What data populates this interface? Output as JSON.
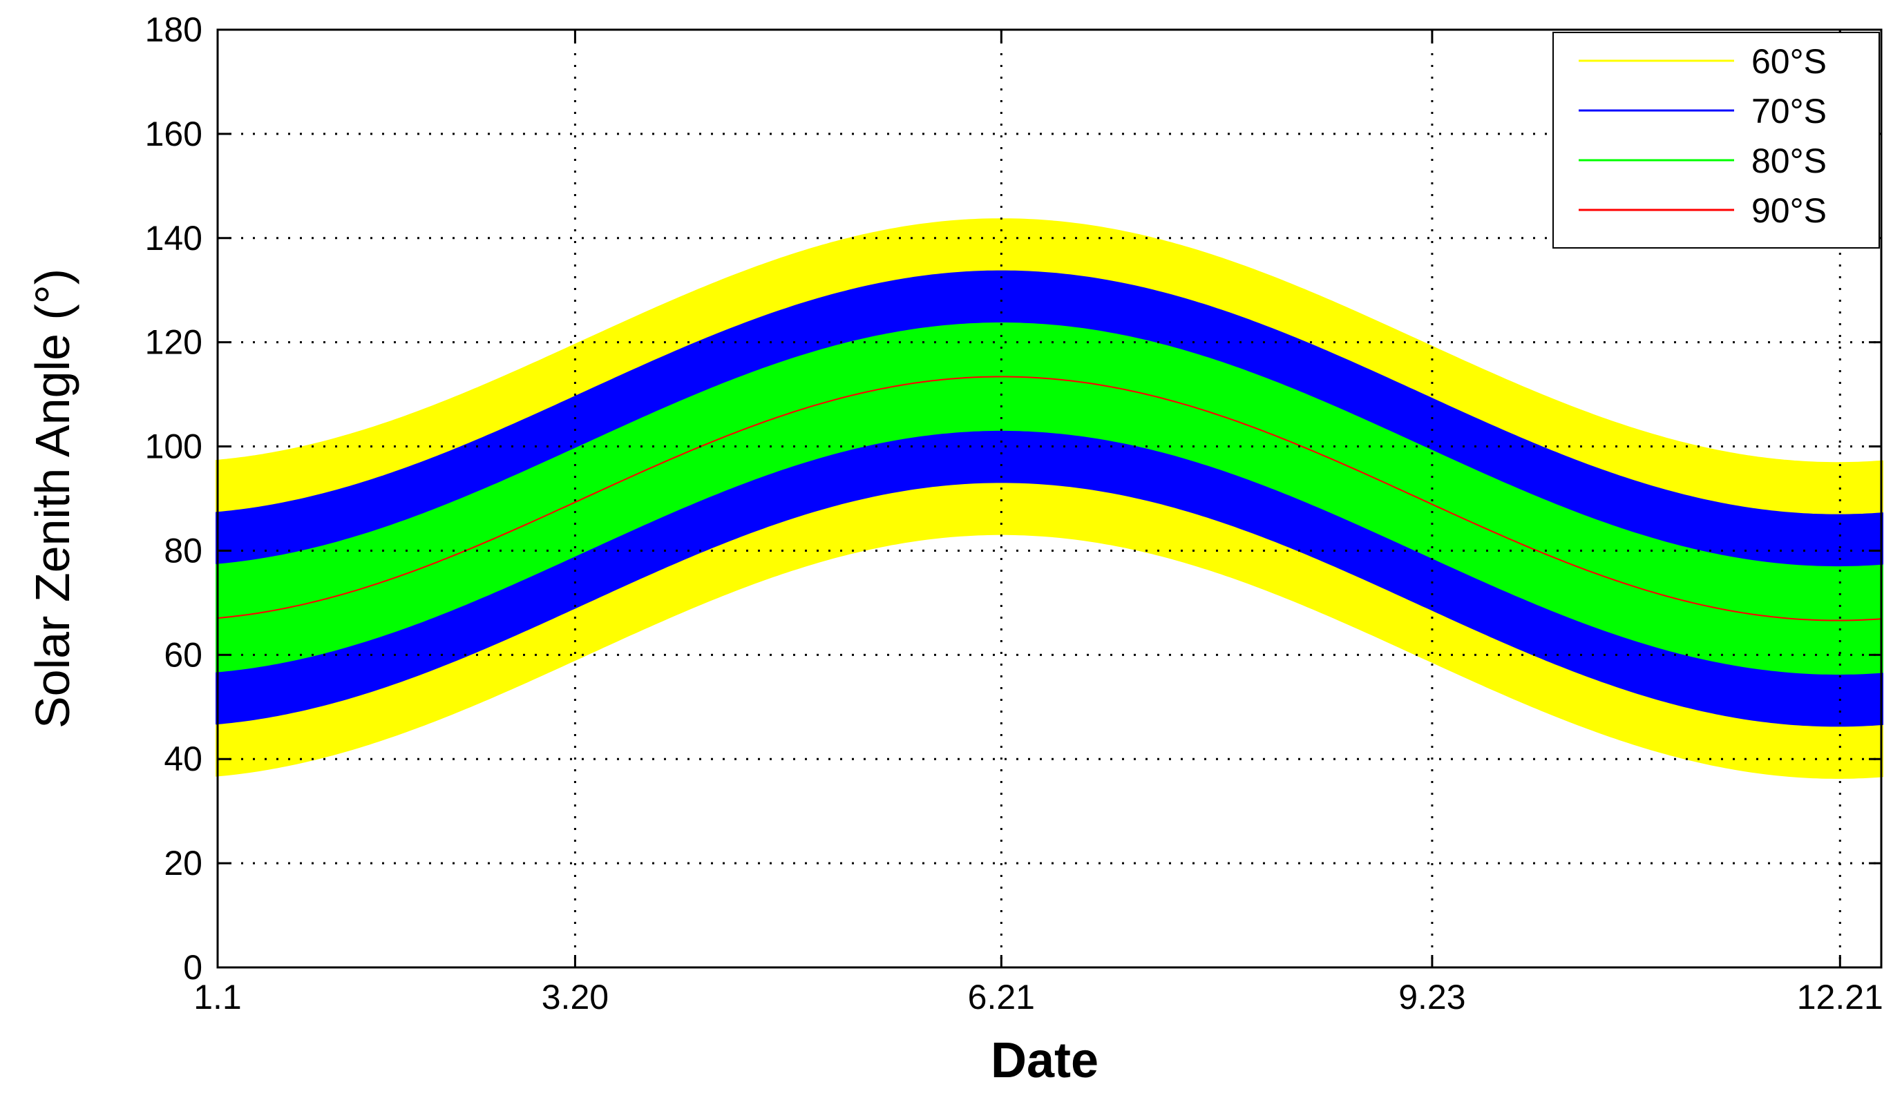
{
  "chart_data": {
    "type": "area",
    "title": "",
    "xlabel": "Date",
    "ylabel": "Solar Zenith Angle (°)",
    "xticks": [
      {
        "label": "1.1",
        "day": 1
      },
      {
        "label": "3.20",
        "day": 79
      },
      {
        "label": "6.21",
        "day": 172
      },
      {
        "label": "9.23",
        "day": 266
      },
      {
        "label": "12.21",
        "day": 355
      }
    ],
    "xlim": [
      1,
      364
    ],
    "ylim": [
      0,
      180
    ],
    "yticks": [
      "0",
      "20",
      "40",
      "60",
      "80",
      "100",
      "120",
      "140",
      "160",
      "180"
    ],
    "grid": true,
    "legend_position": "top-right",
    "series": [
      {
        "name": "60°S",
        "color": "#ffff00",
        "kind": "daily-range",
        "center_min": 66.6,
        "center_max": 113.4,
        "half_range": 30
      },
      {
        "name": "70°S",
        "color": "#0000ff",
        "kind": "daily-range",
        "center_min": 66.6,
        "center_max": 113.4,
        "half_range": 20
      },
      {
        "name": "80°S",
        "color": "#00ff00",
        "kind": "daily-range",
        "center_min": 66.6,
        "center_max": 113.4,
        "half_range": 10
      },
      {
        "name": "90°S",
        "color": "#ff0000",
        "kind": "line",
        "center_min": 66.6,
        "center_max": 113.4,
        "half_range": 0
      }
    ]
  }
}
